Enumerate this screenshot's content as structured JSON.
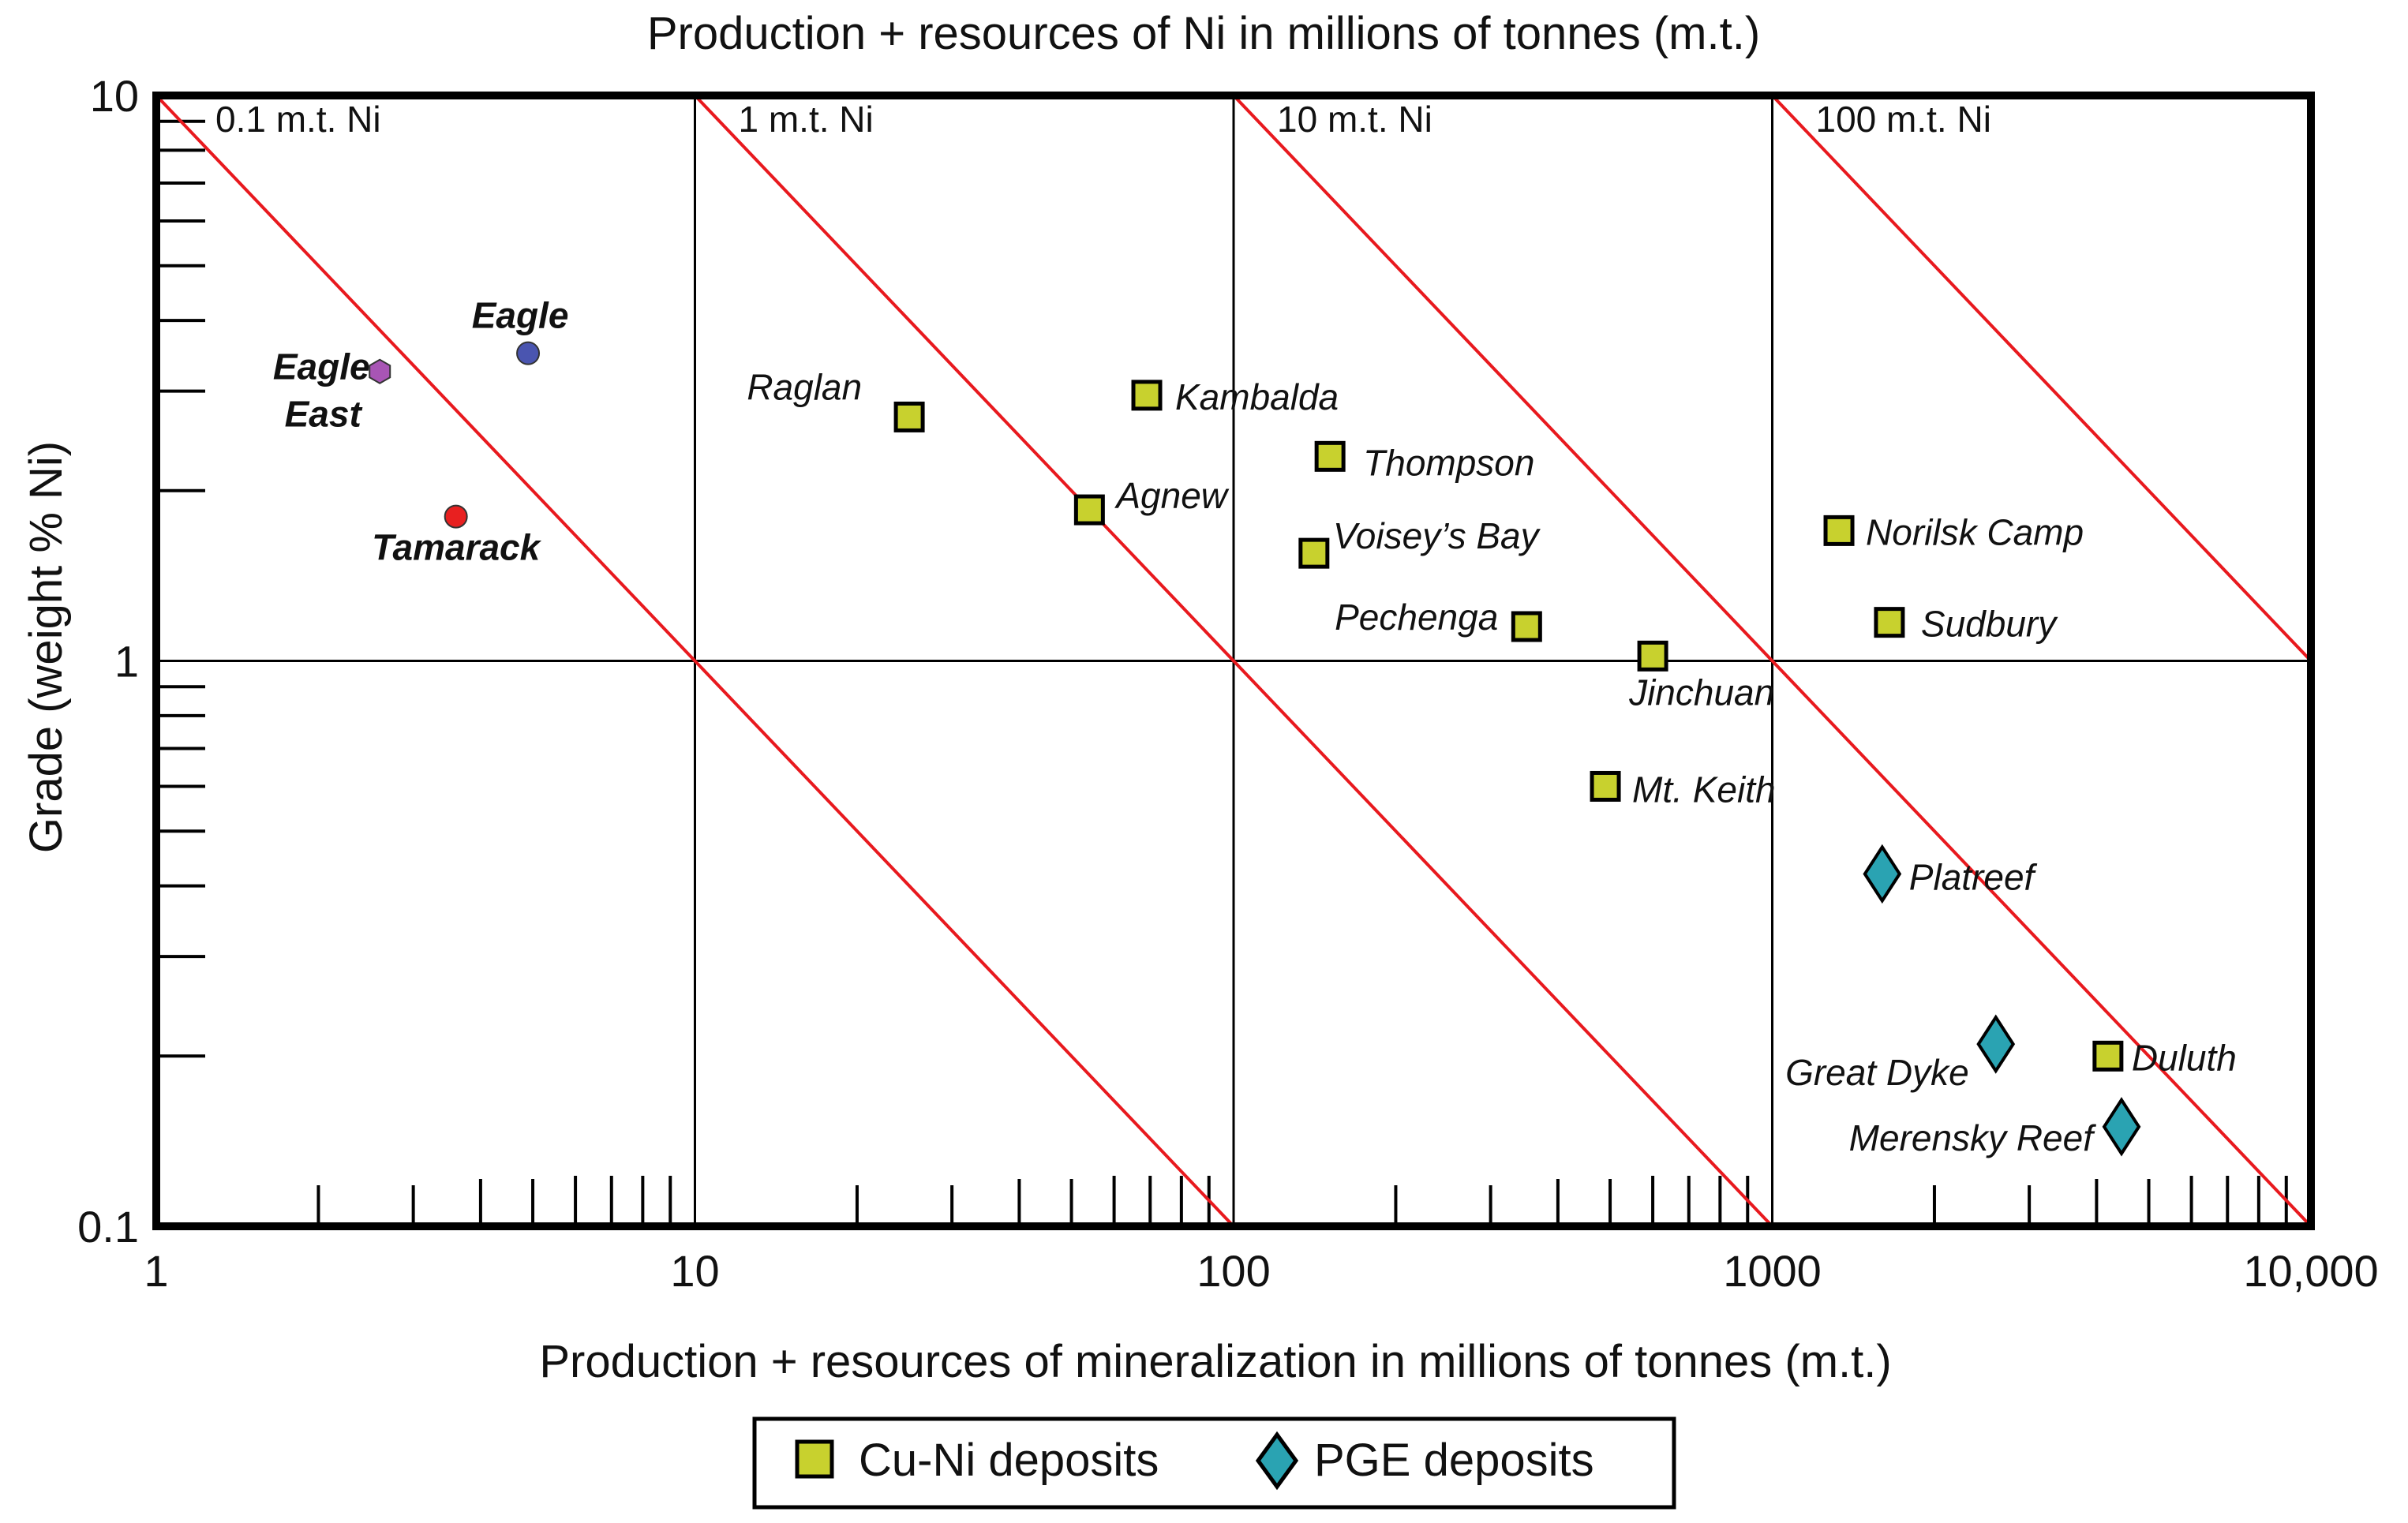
{
  "chart_data": {
    "type": "scatter",
    "title": "Production + resources of Ni in millions of tonnes (m.t.)",
    "xlabel": "Production + resources of mineralization in millions of tonnes (m.t.)",
    "ylabel": "Grade (weight % Ni)",
    "x_scale": "log",
    "y_scale": "log",
    "xlim": [
      1,
      10000
    ],
    "ylim": [
      0.1,
      10
    ],
    "x_tick_labels": [
      "1",
      "10",
      "100",
      "1000",
      "10,000"
    ],
    "y_tick_labels": [
      "0.1",
      "1",
      "10"
    ],
    "grid": true,
    "legend_position": "bottom-center",
    "iso_lines": [
      {
        "label": "0.1 m.t. Ni",
        "tonnes_ni": 0.1
      },
      {
        "label": "1 m.t. Ni",
        "tonnes_ni": 1
      },
      {
        "label": "10 m.t. Ni",
        "tonnes_ni": 10
      },
      {
        "label": "100 m.t. Ni",
        "tonnes_ni": 100
      }
    ],
    "iso_line_color": "#e8191e",
    "series": [
      {
        "name": "Cu-Ni deposits",
        "marker": "square",
        "color": "#c8d12e",
        "points": [
          {
            "label": "Raglan",
            "x": 25,
            "y": 2.7
          },
          {
            "label": "Kambalda",
            "x": 69,
            "y": 2.95
          },
          {
            "label": "Agnew",
            "x": 54,
            "y": 1.85
          },
          {
            "label": "Thompson",
            "x": 151,
            "y": 2.3
          },
          {
            "label": "Voisey’s Bay",
            "x": 141,
            "y": 1.55
          },
          {
            "label": "Pechenga",
            "x": 350,
            "y": 1.15
          },
          {
            "label": "Jinchuan",
            "x": 600,
            "y": 1.02
          },
          {
            "label": "Mt. Keith",
            "x": 490,
            "y": 0.6
          },
          {
            "label": "Norilsk Camp",
            "x": 1330,
            "y": 1.7
          },
          {
            "label": "Sudbury",
            "x": 1650,
            "y": 1.17
          },
          {
            "label": "Duluth",
            "x": 4200,
            "y": 0.2
          }
        ]
      },
      {
        "name": "PGE deposits",
        "marker": "diamond",
        "color": "#2aa3b2",
        "points": [
          {
            "label": "Platreef",
            "x": 1600,
            "y": 0.42
          },
          {
            "label": "Great Dyke",
            "x": 2600,
            "y": 0.21
          },
          {
            "label": "Merensky Reef",
            "x": 4450,
            "y": 0.15
          }
        ]
      },
      {
        "marker": "circle",
        "points": [
          {
            "label": "Eagle",
            "x": 4.9,
            "y": 3.5,
            "color": "#4a55b0"
          },
          {
            "label": "Tamarack",
            "x": 3.6,
            "y": 1.8,
            "color": "#e82020"
          },
          {
            "label": "Eagle East",
            "x": 2.6,
            "y": 3.25,
            "color": "#a855b5",
            "marker": "hexagon"
          }
        ]
      }
    ]
  }
}
